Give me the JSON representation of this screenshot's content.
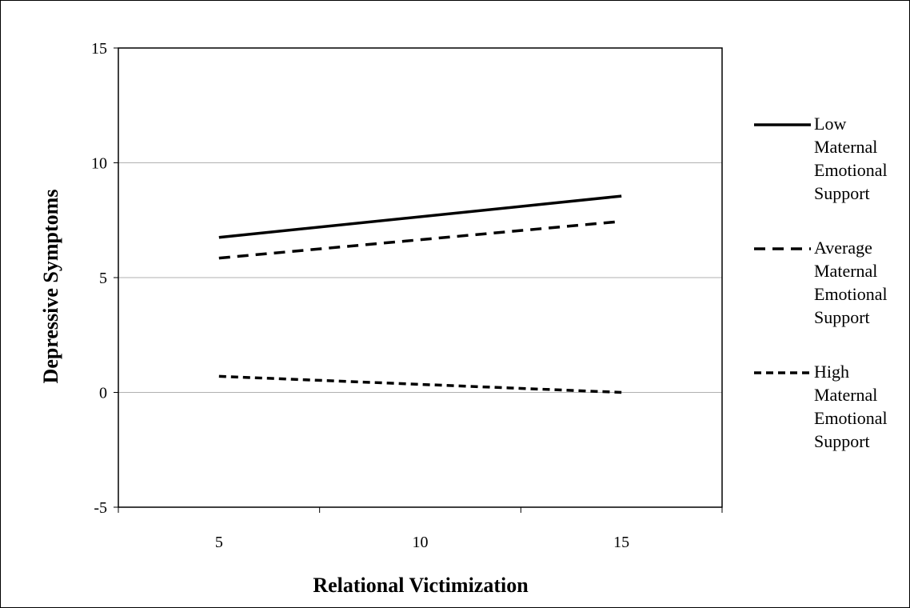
{
  "chart_data": {
    "type": "line",
    "title": "",
    "xlabel": "Relational Victimization",
    "ylabel": "Depressive Symptoms",
    "xlim": [
      2.5,
      17.5
    ],
    "ylim": [
      -5,
      15
    ],
    "xticks": [
      "5",
      "10",
      "15"
    ],
    "yticks": [
      "-5",
      "0",
      "5",
      "10",
      "15"
    ],
    "grid": true,
    "legend_position": "right",
    "x": [
      5,
      15
    ],
    "series": [
      {
        "name": [
          "Low",
          "Maternal",
          "Emotional",
          "Support"
        ],
        "values": [
          6.75,
          8.55
        ],
        "style": "solid",
        "color": "#000000"
      },
      {
        "name": [
          "Average",
          "Maternal",
          "Emotional",
          "Support"
        ],
        "values": [
          5.85,
          7.45
        ],
        "style": "long-dash",
        "color": "#000000"
      },
      {
        "name": [
          "High",
          "Maternal",
          "Emotional",
          "Support"
        ],
        "values": [
          0.7,
          0.0
        ],
        "style": "short-dash",
        "color": "#000000"
      }
    ]
  }
}
